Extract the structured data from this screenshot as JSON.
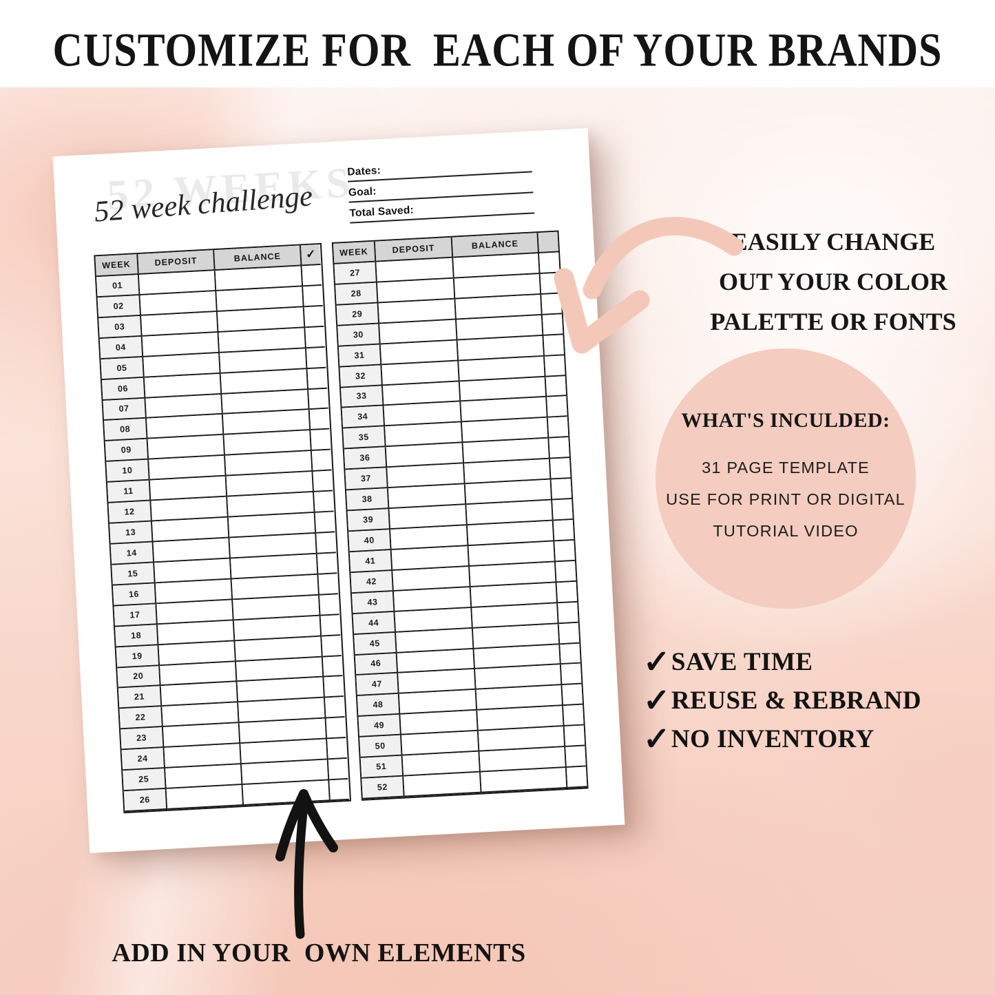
{
  "headline": "CUSTOMIZE FOR  EACH OF YOUR BRANDS",
  "page": {
    "watermark": "52 WEEKS",
    "title_script": "52 week challenge",
    "fields": [
      {
        "label": "Dates:"
      },
      {
        "label": "Goal:"
      },
      {
        "label": "Total Saved:"
      }
    ],
    "tables": [
      {
        "headers": [
          "WEEK",
          "DEPOSIT",
          "BALANCE",
          "✓"
        ],
        "weeks": [
          "01",
          "02",
          "03",
          "04",
          "05",
          "06",
          "07",
          "08",
          "09",
          "10",
          "11",
          "12",
          "13",
          "14",
          "15",
          "16",
          "17",
          "18",
          "19",
          "20",
          "21",
          "22",
          "23",
          "24",
          "25",
          "26"
        ]
      },
      {
        "headers": [
          "WEEK",
          "DEPOSIT",
          "BALANCE",
          ""
        ],
        "weeks": [
          "27",
          "28",
          "29",
          "30",
          "31",
          "32",
          "33",
          "34",
          "35",
          "36",
          "37",
          "38",
          "39",
          "40",
          "41",
          "42",
          "43",
          "44",
          "45",
          "46",
          "47",
          "48",
          "49",
          "50",
          "51",
          "52"
        ]
      }
    ]
  },
  "annotations": {
    "color_note": "EASILY CHANGE\nOUT YOUR COLOR\nPALETTE OR FONTS",
    "included_circle": {
      "heading": "WHAT'S INCULDED:",
      "items": [
        "31 PAGE TEMPLATE",
        "USE FOR PRINT OR DIGITAL",
        "TUTORIAL VIDEO"
      ]
    },
    "benefits": [
      {
        "icon": "✓",
        "label": "SAVE TIME"
      },
      {
        "icon": "✓",
        "label": "REUSE & REBRAND"
      },
      {
        "icon": "✓",
        "label": "NO INVENTORY"
      }
    ],
    "elements_note": "ADD IN YOUR  OWN ELEMENTS"
  },
  "colors": {
    "accent_pink": "#f4cdc0",
    "arrow_pink": "#f4c8b8",
    "wash_pink": "#f6cfc2",
    "table_header_gray": "#d5d5d5",
    "week_cell_gray": "#f1f1f1",
    "border_black": "#1a1a1a",
    "text_black": "#141414"
  }
}
